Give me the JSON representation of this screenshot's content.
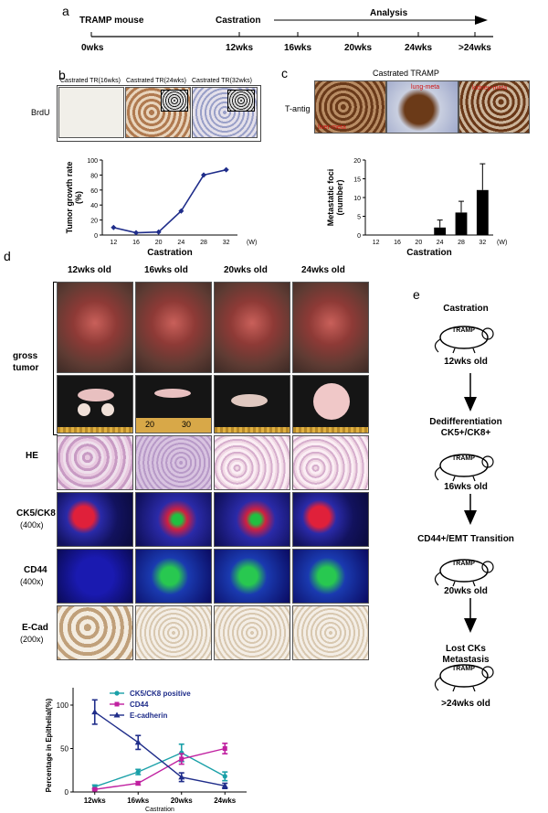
{
  "panel_letters": {
    "a": "a",
    "b": "b",
    "c": "c",
    "d": "d",
    "e": "e"
  },
  "timeline": {
    "start_label": "TRAMP mouse",
    "castration_label": "Castration",
    "analysis_label": "Analysis",
    "ticks": [
      "0wks",
      "12wks",
      "16wks",
      "20wks",
      "24wks",
      ">24wks"
    ]
  },
  "panel_b": {
    "row_label": "BrdU",
    "captions": [
      "Castrated TR(16wks)",
      "Castrated TR(24wks)",
      "Castrated TR(32wks)"
    ]
  },
  "panel_c": {
    "header": "Castrated TRAMP",
    "row_label": "T-antig",
    "annotations": [
      "liver-meta",
      "lung-meta",
      "kidney-meta"
    ]
  },
  "panel_d": {
    "columns": [
      "12wks old",
      "16wks old",
      "20wks old",
      "24wks old"
    ],
    "rows": {
      "gross": "gross",
      "tumor": "tumor",
      "he": "HE",
      "ck": "CK5/CK8",
      "ck_mag": "(400x)",
      "cd44": "CD44",
      "cd44_mag": "(400x)",
      "ecad": "E-Cad",
      "ecad_mag": "(200x)"
    },
    "ruler_labels": [
      "20",
      "30"
    ]
  },
  "panel_e": {
    "steps": [
      {
        "title": "Castration",
        "age": "12wks old"
      },
      {
        "title": "Dedifferentiation\nCK5+/CK8+",
        "age": "16wks old"
      },
      {
        "title": "CD44+/EMT Transition",
        "age": "20wks old"
      },
      {
        "title": "Lost CKs\nMetastasis",
        "age": ">24wks old"
      }
    ],
    "mouse_label": "TRAMP"
  },
  "chart_data": [
    {
      "type": "line",
      "ylabel": "Tumor growth rate\n(%)",
      "xlabel": "Castration",
      "x_unit": "(W)",
      "x": [
        12,
        16,
        20,
        24,
        28,
        32
      ],
      "ylim": [
        0,
        100
      ],
      "yticks": [
        0,
        20,
        40,
        60,
        80,
        100
      ],
      "series": [
        {
          "values": [
            10,
            3,
            4,
            32,
            80,
            87
          ]
        }
      ],
      "color": "#1f2d8a"
    },
    {
      "type": "bar",
      "ylabel": "Metastatic foci\n(number)",
      "xlabel": "Castration",
      "x_unit": "(W)",
      "categories": [
        12,
        16,
        20,
        24,
        28,
        32
      ],
      "values": [
        0,
        0,
        0,
        2,
        6,
        12
      ],
      "errors": [
        0,
        0,
        0,
        2,
        3,
        7
      ],
      "ylim": [
        0,
        20
      ],
      "yticks": [
        0,
        5,
        10,
        15,
        20
      ]
    },
    {
      "type": "line",
      "ylabel": "Percentage in Epithelial(%)",
      "xlabel": "Castration",
      "categories": [
        "12wks",
        "16wks",
        "20wks",
        "24wks"
      ],
      "ylim": [
        0,
        120
      ],
      "yticks": [
        0,
        50,
        100
      ],
      "series": [
        {
          "name": "CK5/CK8 positive",
          "values": [
            6,
            23,
            45,
            18
          ],
          "errors": [
            2,
            3,
            10,
            5
          ],
          "color": "#1aa0a8",
          "marker": "circle"
        },
        {
          "name": "CD44",
          "values": [
            3,
            10,
            38,
            50
          ],
          "errors": [
            1,
            2,
            6,
            6
          ],
          "color": "#c020a0",
          "marker": "square"
        },
        {
          "name": "E-cadherin",
          "values": [
            92,
            57,
            17,
            7
          ],
          "errors": [
            14,
            8,
            5,
            3
          ],
          "color": "#1f2d8a",
          "marker": "triangle"
        }
      ]
    }
  ]
}
